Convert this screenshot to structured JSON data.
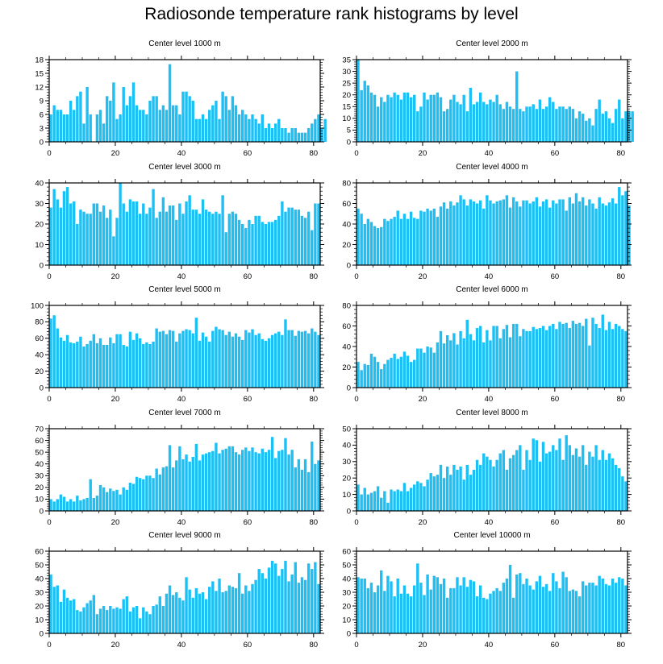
{
  "title": "Radiosonde temperature rank histograms by level",
  "chart_data": [
    {
      "type": "bar",
      "title": "Center level 1000 m",
      "yticks": [
        0,
        3,
        6,
        9,
        12,
        15,
        18
      ],
      "ylim": [
        0,
        18
      ],
      "xticks": [
        0,
        20,
        40,
        60,
        80
      ],
      "xlim": [
        0,
        82
      ],
      "values": [
        6,
        8,
        7,
        7,
        6,
        6,
        9,
        7,
        10,
        11,
        4,
        12,
        6,
        0,
        6,
        7,
        4,
        10,
        9,
        13,
        5,
        6,
        12,
        8,
        10,
        13,
        8,
        7,
        7,
        6,
        9,
        10,
        10,
        7,
        8,
        7,
        17,
        8,
        8,
        6,
        11,
        11,
        10,
        9,
        5,
        5,
        6,
        5,
        7,
        8,
        9,
        5,
        11,
        10,
        7,
        10,
        8,
        6,
        7,
        6,
        5,
        6,
        5,
        4,
        6,
        3,
        4,
        3,
        4,
        5,
        3,
        3,
        2,
        3,
        3,
        2,
        2,
        2,
        3,
        4,
        5,
        6,
        3,
        5
      ]
    },
    {
      "title": "Center level 2000 m",
      "yticks": [
        0,
        5,
        10,
        15,
        20,
        25,
        30,
        35
      ],
      "ylim": [
        0,
        35
      ],
      "xticks": [
        0,
        20,
        40,
        60,
        80
      ],
      "xlim": [
        0,
        82
      ],
      "values": [
        35,
        22,
        26,
        24,
        21,
        20,
        15,
        19,
        17,
        20,
        19,
        21,
        20,
        18,
        21,
        21,
        19,
        20,
        13,
        15,
        21,
        18,
        20,
        20,
        21,
        19,
        13,
        14,
        18,
        20,
        17,
        16,
        20,
        13,
        23,
        16,
        17,
        21,
        17,
        16,
        18,
        17,
        20,
        16,
        14,
        17,
        15,
        14,
        30,
        14,
        13,
        15,
        15,
        16,
        14,
        18,
        14,
        15,
        19,
        17,
        14,
        15,
        15,
        14,
        15,
        14,
        10,
        13,
        12,
        9,
        10,
        7,
        14,
        18,
        12,
        13,
        10,
        8,
        14,
        18,
        10,
        13,
        13,
        13
      ]
    },
    {
      "title": "Center level 3000 m",
      "yticks": [
        0,
        10,
        20,
        30,
        40
      ],
      "ylim": [
        0,
        40
      ],
      "xticks": [
        0,
        20,
        40,
        60,
        80
      ],
      "xlim": [
        0,
        82
      ],
      "values": [
        28,
        37,
        32,
        28,
        36,
        38,
        30,
        31,
        20,
        27,
        26,
        25,
        25,
        30,
        30,
        26,
        29,
        23,
        27,
        14,
        23,
        40,
        30,
        26,
        32,
        31,
        31,
        25,
        30,
        25,
        28,
        37,
        23,
        26,
        33,
        26,
        29,
        29,
        22,
        30,
        25,
        31,
        34,
        27,
        27,
        25,
        32,
        27,
        26,
        25,
        26,
        25,
        34,
        16,
        25,
        26,
        25,
        22,
        20,
        18,
        22,
        20,
        24,
        24,
        21,
        20,
        21,
        21,
        22,
        24,
        31,
        26,
        28,
        28,
        27,
        27,
        24,
        23,
        26,
        17,
        30,
        30
      ]
    },
    {
      "title": "Center level 4000 m",
      "yticks": [
        0,
        20,
        40,
        60,
        80
      ],
      "ylim": [
        0,
        80
      ],
      "xticks": [
        0,
        20,
        40,
        60,
        80
      ],
      "xlim": [
        0,
        82
      ],
      "values": [
        55,
        50,
        40,
        45,
        42,
        38,
        36,
        37,
        45,
        43,
        45,
        47,
        53,
        45,
        50,
        45,
        52,
        46,
        45,
        53,
        52,
        55,
        53,
        55,
        47,
        57,
        61,
        55,
        62,
        58,
        61,
        68,
        64,
        58,
        64,
        62,
        60,
        63,
        55,
        68,
        63,
        60,
        62,
        63,
        64,
        68,
        56,
        66,
        62,
        57,
        63,
        63,
        60,
        62,
        66,
        57,
        62,
        64,
        56,
        63,
        60,
        64,
        64,
        53,
        66,
        60,
        70,
        62,
        66,
        58,
        64,
        60,
        55,
        66,
        60,
        58,
        61,
        65,
        60,
        76,
        68,
        72,
        58
      ]
    },
    {
      "title": "Center level 5000 m",
      "yticks": [
        0,
        20,
        40,
        60,
        80,
        100
      ],
      "ylim": [
        0,
        100
      ],
      "xticks": [
        0,
        20,
        40,
        60,
        80
      ],
      "xlim": [
        0,
        82
      ],
      "values": [
        84,
        88,
        72,
        61,
        57,
        64,
        55,
        54,
        56,
        62,
        50,
        53,
        57,
        65,
        54,
        60,
        52,
        52,
        61,
        54,
        65,
        65,
        52,
        50,
        68,
        58,
        66,
        60,
        53,
        55,
        53,
        56,
        72,
        68,
        69,
        65,
        70,
        69,
        56,
        66,
        69,
        71,
        70,
        66,
        85,
        57,
        67,
        62,
        56,
        69,
        74,
        71,
        70,
        64,
        68,
        62,
        66,
        62,
        58,
        70,
        67,
        71,
        64,
        66,
        59,
        57,
        60,
        64,
        66,
        68,
        64,
        83,
        70,
        70,
        63,
        69,
        68,
        69,
        66,
        72,
        68,
        64
      ]
    },
    {
      "title": "Center level 6000 m",
      "yticks": [
        0,
        20,
        40,
        60,
        80
      ],
      "ylim": [
        0,
        80
      ],
      "xticks": [
        0,
        20,
        40,
        60,
        80
      ],
      "xlim": [
        0,
        82
      ],
      "values": [
        25,
        17,
        23,
        22,
        33,
        30,
        25,
        18,
        23,
        27,
        29,
        33,
        28,
        30,
        35,
        31,
        25,
        27,
        38,
        38,
        34,
        40,
        39,
        34,
        44,
        55,
        43,
        51,
        46,
        53,
        42,
        55,
        48,
        66,
        52,
        46,
        58,
        60,
        44,
        56,
        46,
        60,
        60,
        48,
        57,
        61,
        49,
        62,
        62,
        50,
        57,
        55,
        55,
        59,
        57,
        58,
        60,
        56,
        60,
        62,
        57,
        64,
        62,
        63,
        58,
        65,
        62,
        63,
        60,
        67,
        41,
        68,
        62,
        58,
        71,
        56,
        64,
        57,
        62,
        60,
        57,
        55
      ]
    },
    {
      "title": "Center level 7000 m",
      "yticks": [
        0,
        10,
        20,
        30,
        40,
        50,
        60,
        70
      ],
      "ylim": [
        0,
        70
      ],
      "xticks": [
        0,
        20,
        40,
        60,
        80
      ],
      "xlim": [
        0,
        82
      ],
      "values": [
        10,
        8,
        10,
        14,
        12,
        8,
        10,
        8,
        13,
        9,
        10,
        11,
        27,
        11,
        13,
        22,
        20,
        16,
        19,
        17,
        18,
        14,
        20,
        18,
        24,
        23,
        29,
        28,
        27,
        30,
        30,
        28,
        36,
        31,
        37,
        38,
        56,
        37,
        43,
        55,
        44,
        48,
        42,
        46,
        57,
        43,
        48,
        49,
        50,
        51,
        58,
        49,
        52,
        53,
        55,
        55,
        50,
        48,
        52,
        54,
        51,
        54,
        50,
        49,
        53,
        50,
        52,
        63,
        45,
        51,
        52,
        62,
        48,
        52,
        37,
        44,
        35,
        44,
        33,
        59,
        40,
        43
      ]
    },
    {
      "title": "Center level 8000 m",
      "yticks": [
        0,
        10,
        20,
        30,
        40,
        50
      ],
      "ylim": [
        0,
        50
      ],
      "xticks": [
        0,
        20,
        40,
        60,
        80
      ],
      "xlim": [
        0,
        82
      ],
      "values": [
        16,
        10,
        14,
        10,
        11,
        12,
        15,
        8,
        12,
        5,
        13,
        12,
        13,
        12,
        17,
        12,
        14,
        16,
        18,
        17,
        15,
        19,
        23,
        21,
        22,
        28,
        20,
        27,
        22,
        28,
        25,
        27,
        19,
        28,
        22,
        25,
        31,
        28,
        35,
        33,
        31,
        27,
        31,
        35,
        37,
        25,
        32,
        34,
        37,
        40,
        25,
        37,
        31,
        44,
        43,
        30,
        42,
        35,
        36,
        40,
        37,
        44,
        31,
        46,
        40,
        34,
        38,
        33,
        40,
        28,
        36,
        33,
        40,
        31,
        37,
        31,
        35,
        32,
        28,
        26,
        21,
        18
      ]
    },
    {
      "title": "Center level 9000 m",
      "yticks": [
        0,
        10,
        20,
        30,
        40,
        50,
        60
      ],
      "ylim": [
        0,
        60
      ],
      "xticks": [
        0,
        20,
        40,
        60,
        80
      ],
      "xlim": [
        0,
        82
      ],
      "values": [
        43,
        34,
        35,
        23,
        32,
        26,
        24,
        25,
        17,
        16,
        19,
        22,
        24,
        28,
        14,
        18,
        20,
        17,
        20,
        18,
        19,
        18,
        25,
        27,
        16,
        19,
        20,
        11,
        19,
        16,
        14,
        20,
        21,
        27,
        20,
        29,
        35,
        28,
        30,
        26,
        24,
        41,
        32,
        26,
        33,
        29,
        30,
        25,
        34,
        38,
        31,
        40,
        30,
        31,
        35,
        34,
        33,
        44,
        29,
        35,
        31,
        36,
        39,
        47,
        44,
        40,
        48,
        53,
        51,
        42,
        47,
        53,
        38,
        43,
        52,
        37,
        41,
        39,
        51,
        47,
        52,
        36
      ]
    },
    {
      "title": "Center level 10000 m",
      "yticks": [
        0,
        10,
        20,
        30,
        40,
        50,
        60
      ],
      "ylim": [
        0,
        60
      ],
      "xticks": [
        0,
        20,
        40,
        60,
        80
      ],
      "xlim": [
        0,
        82
      ],
      "values": [
        41,
        40,
        40,
        33,
        37,
        30,
        35,
        46,
        31,
        42,
        38,
        27,
        40,
        29,
        35,
        29,
        27,
        35,
        51,
        37,
        28,
        43,
        32,
        42,
        41,
        36,
        40,
        26,
        33,
        33,
        41,
        35,
        41,
        34,
        39,
        38,
        27,
        35,
        26,
        25,
        29,
        31,
        33,
        31,
        37,
        40,
        50,
        26,
        43,
        44,
        36,
        40,
        35,
        32,
        38,
        42,
        34,
        36,
        31,
        44,
        38,
        33,
        45,
        41,
        31,
        32,
        31,
        27,
        38,
        35,
        37,
        37,
        35,
        42,
        40,
        36,
        35,
        40,
        37,
        41,
        40,
        35
      ]
    }
  ]
}
